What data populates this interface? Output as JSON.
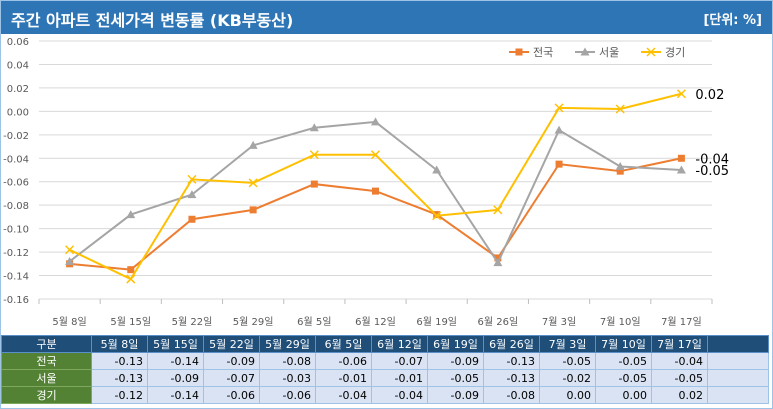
{
  "header": {
    "title": "주간 아파트 전세가격 변동률 (KB부동산)",
    "unit": "[단위: %]"
  },
  "colors": {
    "title_bg": "#2e75b6",
    "전국": "#ed7d31",
    "서울": "#a5a5a5",
    "경기": "#ffc000",
    "table_head": "#1f4e79",
    "table_rowlabel": "#548235",
    "table_cell": "#dae3f3"
  },
  "chart_data": {
    "type": "line",
    "categories": [
      "5월 8일",
      "5월 15일",
      "5월 22일",
      "5월 29일",
      "6월 5일",
      "6월 12일",
      "6월 19일",
      "6월 26일",
      "7월 3일",
      "7월 10일",
      "7월 17일"
    ],
    "series": [
      {
        "name": "전국",
        "marker": "square",
        "values": [
          -0.13,
          -0.135,
          -0.092,
          -0.084,
          -0.062,
          -0.068,
          -0.088,
          -0.125,
          -0.045,
          -0.051,
          -0.04
        ]
      },
      {
        "name": "서울",
        "marker": "triangle",
        "values": [
          -0.128,
          -0.088,
          -0.071,
          -0.029,
          -0.014,
          -0.009,
          -0.05,
          -0.129,
          -0.016,
          -0.047,
          -0.05
        ]
      },
      {
        "name": "경기",
        "marker": "x",
        "values": [
          -0.118,
          -0.143,
          -0.058,
          -0.061,
          -0.037,
          -0.037,
          -0.089,
          -0.084,
          0.003,
          0.002,
          0.015
        ]
      }
    ],
    "end_labels": {
      "전국": "-0.04",
      "서울": "-0.05",
      "경기": "0.02"
    },
    "ylim": [
      -0.16,
      0.06
    ],
    "yticks": [
      "0.06",
      "0.04",
      "0.02",
      "0.00",
      "-0.02",
      "-0.04",
      "-0.06",
      "-0.08",
      "-0.10",
      "-0.12",
      "-0.14",
      "-0.16"
    ],
    "grid": true,
    "legend": "top-right"
  },
  "table": {
    "header_label": "구분",
    "columns": [
      "5월 8일",
      "5월 15일",
      "5월 22일",
      "5월 29일",
      "6월 5일",
      "6월 12일",
      "6월 19일",
      "6월 26일",
      "7월 3일",
      "7월 10일",
      "7월 17일"
    ],
    "rows": [
      {
        "label": "전국",
        "values": [
          "-0.13",
          "-0.14",
          "-0.09",
          "-0.08",
          "-0.06",
          "-0.07",
          "-0.09",
          "-0.13",
          "-0.05",
          "-0.05",
          "-0.04"
        ]
      },
      {
        "label": "서울",
        "values": [
          "-0.13",
          "-0.09",
          "-0.07",
          "-0.03",
          "-0.01",
          "-0.01",
          "-0.05",
          "-0.13",
          "-0.02",
          "-0.05",
          "-0.05"
        ]
      },
      {
        "label": "경기",
        "values": [
          "-0.12",
          "-0.14",
          "-0.06",
          "-0.06",
          "-0.04",
          "-0.04",
          "-0.09",
          "-0.08",
          "0.00",
          "0.00",
          "0.02"
        ]
      }
    ]
  }
}
